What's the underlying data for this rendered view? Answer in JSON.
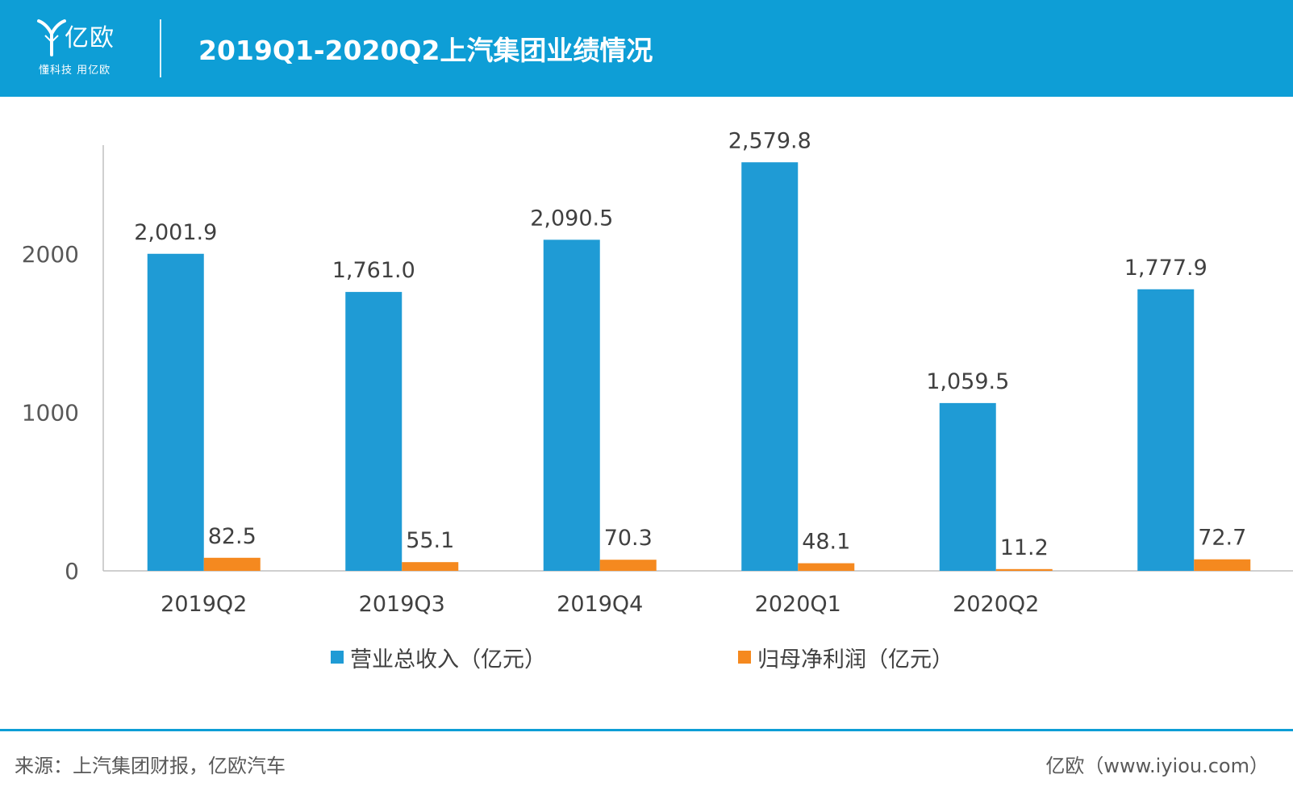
{
  "header": {
    "logo_text": "亿欧",
    "logo_slogan": "懂科技 用亿欧",
    "title": "2019Q1-2020Q2上汽集团业绩情况"
  },
  "colors": {
    "header_bg": "#0E9ED6",
    "series_revenue": "#1F9BD5",
    "series_profit": "#F5891F"
  },
  "chart_data": {
    "type": "bar",
    "title": "2019Q1-2020Q2上汽集团业绩情况",
    "categories": [
      "2019Q2",
      "2019Q3",
      "2019Q4",
      "2020Q1",
      "2020Q2",
      ""
    ],
    "series": [
      {
        "name": "营业总收入（亿元）",
        "values": [
          2001.9,
          1761.0,
          2090.5,
          2579.8,
          1059.5,
          1777.9
        ]
      },
      {
        "name": "归母净利润（亿元）",
        "values": [
          82.5,
          55.1,
          70.3,
          48.1,
          11.2,
          72.7
        ]
      }
    ],
    "data_labels": [
      [
        "2,001.9",
        "1,761.0",
        "2,090.5",
        "2,579.8",
        "1,059.5",
        "1,777.9"
      ],
      [
        "82.5",
        "55.1",
        "70.3",
        "48.1",
        "11.2",
        "72.7"
      ]
    ],
    "yticks": [
      0,
      1000,
      2000
    ],
    "ylim": [
      0,
      2800
    ],
    "xlabel": "",
    "ylabel": "",
    "grid": false,
    "legend_position": "bottom"
  },
  "footer": {
    "source": "来源：上汽集团财报，亿欧汽车",
    "credit": "亿欧（www.iyiou.com）"
  }
}
